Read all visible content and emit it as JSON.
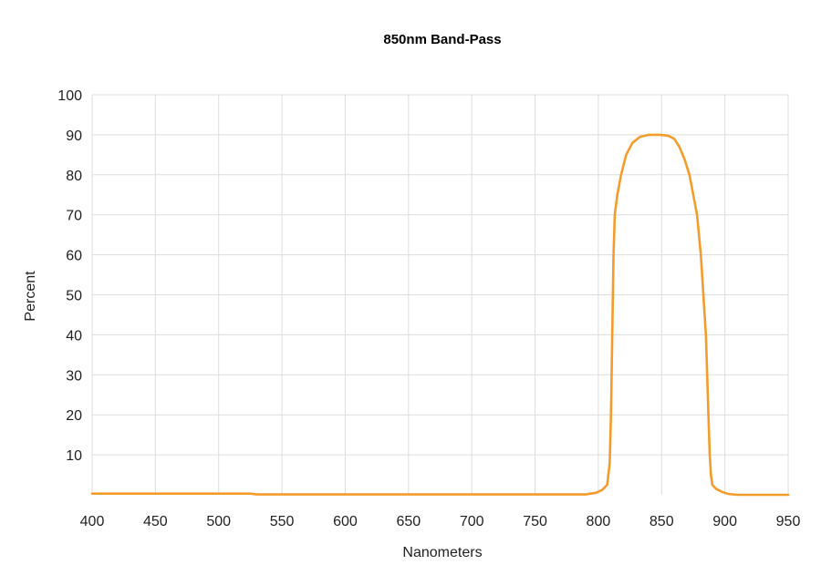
{
  "chart_data": {
    "type": "line",
    "title": "850nm Band-Pass",
    "xlabel": "Nanometers",
    "ylabel": "Percent",
    "xlim": [
      400,
      950
    ],
    "ylim": [
      0,
      100
    ],
    "x_ticks": [
      400,
      450,
      500,
      550,
      600,
      650,
      700,
      750,
      800,
      850,
      900,
      950
    ],
    "y_ticks": [
      10,
      20,
      30,
      40,
      50,
      60,
      70,
      80,
      90,
      100
    ],
    "grid": true,
    "legend": "none",
    "series": [
      {
        "color": "#f39c2c",
        "x": [
          400,
          500,
          525,
          530,
          600,
          700,
          790,
          798,
          803,
          807,
          809,
          810,
          811,
          812,
          813,
          815,
          818,
          822,
          827,
          833,
          840,
          848,
          855,
          860,
          864,
          868,
          872,
          875,
          878,
          881,
          883,
          885,
          886,
          887,
          888,
          889,
          890,
          893,
          898,
          903,
          910,
          950
        ],
        "y": [
          0.3,
          0.3,
          0.3,
          0.1,
          0.1,
          0.1,
          0.1,
          0.5,
          1.2,
          2.5,
          8,
          20,
          40,
          60,
          70,
          75,
          80,
          85,
          88,
          89.5,
          90,
          90,
          89.8,
          89,
          87,
          84,
          80,
          75,
          70,
          60,
          50,
          40,
          30,
          20,
          10,
          5,
          2.5,
          1.5,
          0.7,
          0.2,
          0,
          0
        ]
      }
    ]
  }
}
